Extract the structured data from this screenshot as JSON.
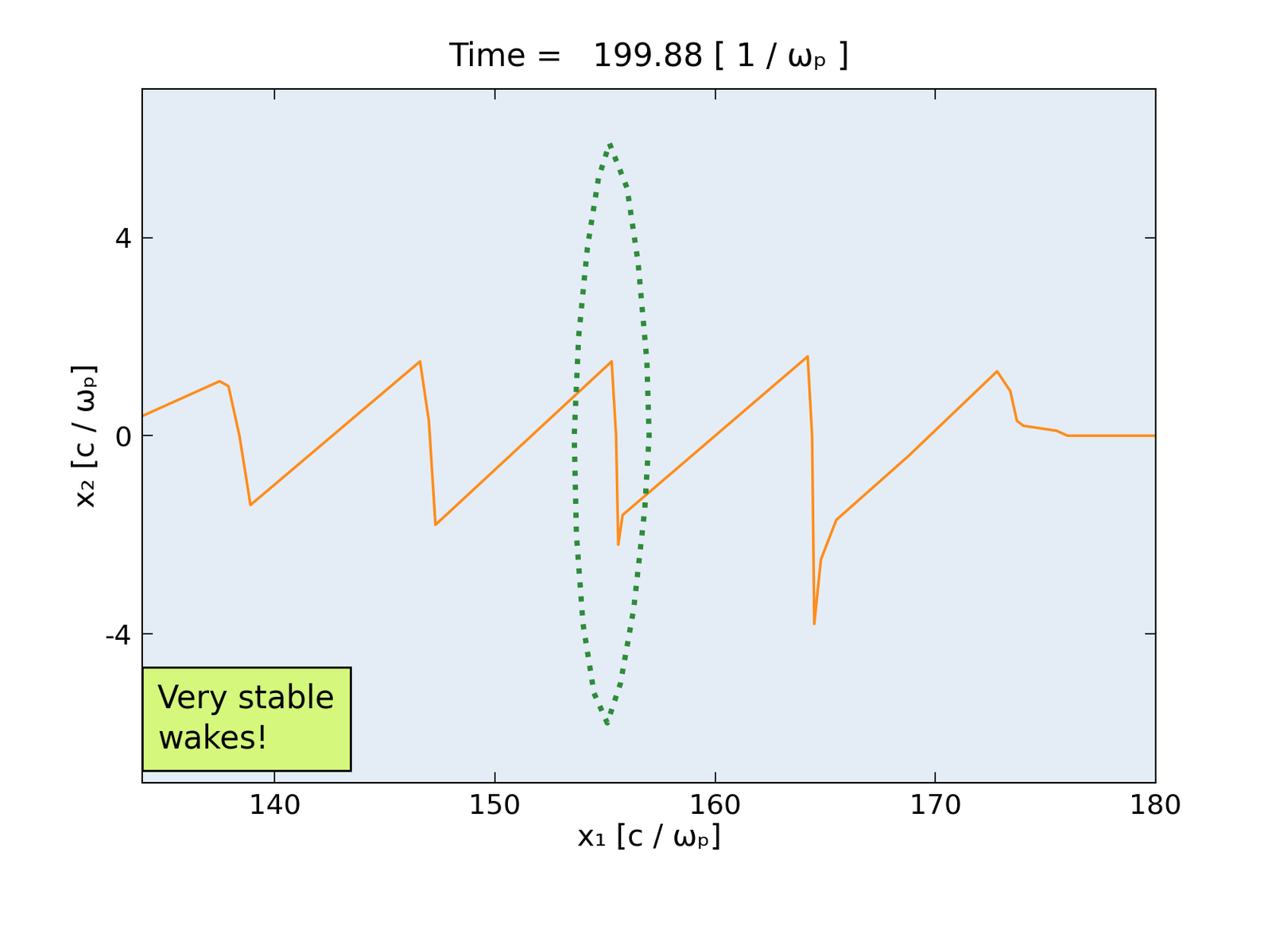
{
  "chart_data": {
    "type": "line",
    "title": "Time =   199.88 [ 1 / ωₚ ]",
    "x_label": "x₁ [c / ωₚ]",
    "y_label": "x₂ [c / ωₚ]",
    "annotation": "Very stable\nwakes!",
    "xlim": [
      134,
      180
    ],
    "xticks": [
      140,
      150,
      160,
      170,
      180
    ],
    "ylim": [
      -7,
      7
    ],
    "yticks": [
      -4,
      0,
      4
    ],
    "grid": false,
    "series": [
      {
        "color": "#ff8c1a",
        "line_style": "solid",
        "x": [
          134,
          137.5,
          137.9,
          138.4,
          138.9,
          146.6,
          147.0,
          147.3,
          155.3,
          155.5,
          155.6,
          155.8,
          164.2,
          164.4,
          164.5,
          164.8,
          165.5,
          168.8,
          172.8,
          173.4,
          173.7,
          174.0,
          175.5,
          176.0,
          180
        ],
        "values": [
          0.4,
          1.1,
          1.0,
          0.0,
          -1.4,
          1.5,
          0.3,
          -1.8,
          1.5,
          0.0,
          -2.2,
          -1.6,
          1.6,
          0.0,
          -3.8,
          -2.5,
          -1.7,
          -0.4,
          1.3,
          0.9,
          0.3,
          0.2,
          0.1,
          0.0,
          0.0
        ]
      },
      {
        "color": "#2e8b3a",
        "line_style": "dotted",
        "x": [
          155.2,
          156.0,
          156.5,
          156.9,
          157.0,
          156.8,
          156.3,
          155.7,
          155.1,
          154.5,
          154.0,
          153.7,
          153.6,
          153.8,
          154.2,
          154.7,
          155.2
        ],
        "values": [
          5.9,
          5.0,
          3.5,
          1.5,
          0.0,
          -1.5,
          -3.5,
          -5.0,
          -5.8,
          -5.2,
          -3.8,
          -2.0,
          0.0,
          2.0,
          3.8,
          5.2,
          5.9
        ]
      }
    ]
  }
}
